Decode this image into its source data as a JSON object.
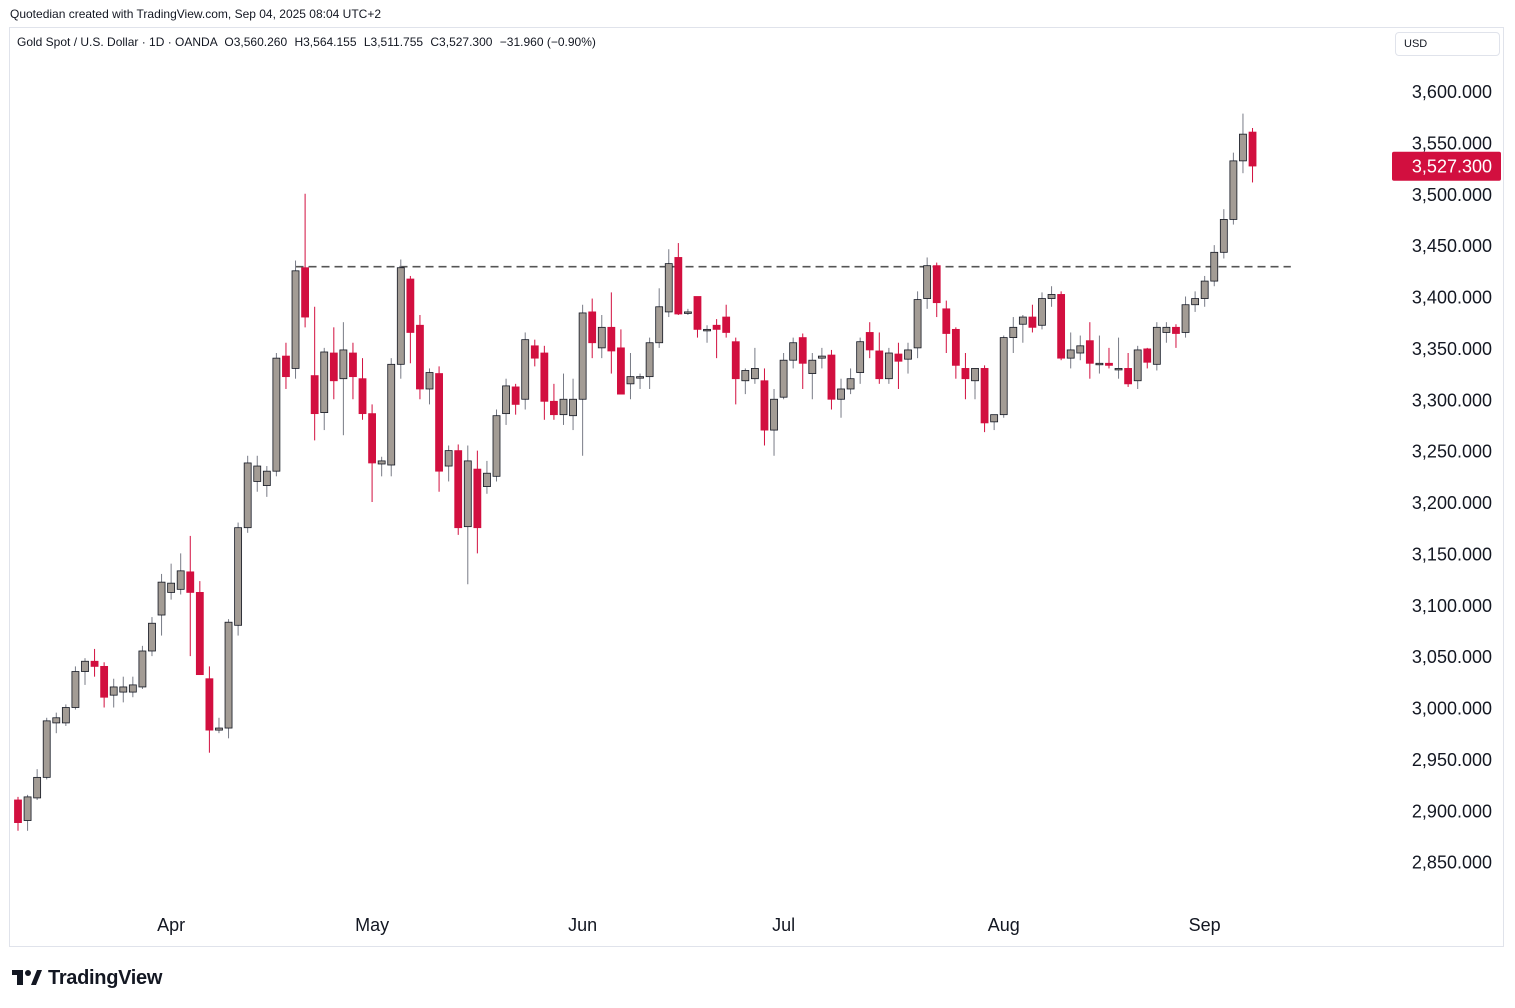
{
  "credit": "Quotedian created with TradingView.com, Sep 04, 2025 08:04 UTC+2",
  "legend": {
    "title": "Gold Spot / U.S. Dollar · 1D · OANDA",
    "open": "O3,560.260",
    "high": "H3,564.155",
    "low": "L3,511.755",
    "close": "C3,527.300",
    "change": "−31.960 (−0.90%)"
  },
  "currency": "USD",
  "last_price_label": "3,527.300",
  "brand": "TradingView",
  "colors": {
    "up": "#a39c95",
    "down": "#d20f3f",
    "wick_up": "#787b86",
    "wick_down": "#d20f3f",
    "price_tag": "#d20f3f",
    "line": "#555555"
  },
  "chart_data": {
    "type": "candlestick",
    "title": "Gold Spot / U.S. Dollar",
    "ylim": [
      2810,
      3625
    ],
    "y_ticks": [
      2850,
      2900,
      2950,
      3000,
      3050,
      3100,
      3150,
      3200,
      3250,
      3300,
      3350,
      3400,
      3450,
      3500,
      3550,
      3600
    ],
    "y_tick_labels": [
      "2,850.000",
      "2,900.000",
      "2,950.000",
      "3,000.000",
      "3,050.000",
      "3,100.000",
      "3,150.000",
      "3,200.000",
      "3,250.000",
      "3,300.000",
      "3,350.000",
      "3,400.000",
      "3,450.000",
      "3,500.000",
      "3,550.000",
      "3,600.000"
    ],
    "x_labels": [
      {
        "label": "Apr",
        "index": 16
      },
      {
        "label": "May",
        "index": 37
      },
      {
        "label": "Jun",
        "index": 59
      },
      {
        "label": "Jul",
        "index": 80
      },
      {
        "label": "Aug",
        "index": 103
      },
      {
        "label": "Sep",
        "index": 124
      }
    ],
    "horizontal_line": {
      "value": 3429,
      "from_index": 29,
      "to_index": 133,
      "style": "dashed"
    },
    "last_price": 3527.3,
    "candles": [
      {
        "o": 2910,
        "h": 2913,
        "l": 2880,
        "c": 2888
      },
      {
        "o": 2890,
        "h": 2915,
        "l": 2880,
        "c": 2913
      },
      {
        "o": 2912,
        "h": 2940,
        "l": 2910,
        "c": 2932
      },
      {
        "o": 2932,
        "h": 2990,
        "l": 2930,
        "c": 2987
      },
      {
        "o": 2985,
        "h": 2995,
        "l": 2975,
        "c": 2990
      },
      {
        "o": 2985,
        "h": 3003,
        "l": 2982,
        "c": 3000
      },
      {
        "o": 3000,
        "h": 3040,
        "l": 2998,
        "c": 3035
      },
      {
        "o": 3035,
        "h": 3048,
        "l": 3022,
        "c": 3045
      },
      {
        "o": 3045,
        "h": 3057,
        "l": 3030,
        "c": 3040
      },
      {
        "o": 3040,
        "h": 3044,
        "l": 3000,
        "c": 3010
      },
      {
        "o": 3012,
        "h": 3028,
        "l": 3000,
        "c": 3020
      },
      {
        "o": 3015,
        "h": 3030,
        "l": 3005,
        "c": 3020
      },
      {
        "o": 3015,
        "h": 3030,
        "l": 3010,
        "c": 3022
      },
      {
        "o": 3020,
        "h": 3060,
        "l": 3018,
        "c": 3055
      },
      {
        "o": 3055,
        "h": 3088,
        "l": 3050,
        "c": 3082
      },
      {
        "o": 3090,
        "h": 3130,
        "l": 3070,
        "c": 3122
      },
      {
        "o": 3112,
        "h": 3140,
        "l": 3105,
        "c": 3121
      },
      {
        "o": 3115,
        "h": 3150,
        "l": 3110,
        "c": 3133
      },
      {
        "o": 3132,
        "h": 3167,
        "l": 3050,
        "c": 3112
      },
      {
        "o": 3112,
        "h": 3123,
        "l": 3035,
        "c": 3032
      },
      {
        "o": 3028,
        "h": 3040,
        "l": 2956,
        "c": 2978
      },
      {
        "o": 2978,
        "h": 2990,
        "l": 2975,
        "c": 2980
      },
      {
        "o": 2980,
        "h": 3086,
        "l": 2970,
        "c": 3083
      },
      {
        "o": 3080,
        "h": 3180,
        "l": 3070,
        "c": 3175
      },
      {
        "o": 3175,
        "h": 3245,
        "l": 3170,
        "c": 3238
      },
      {
        "o": 3220,
        "h": 3245,
        "l": 3210,
        "c": 3235
      },
      {
        "o": 3216,
        "h": 3235,
        "l": 3205,
        "c": 3230
      },
      {
        "o": 3230,
        "h": 3345,
        "l": 3225,
        "c": 3340
      },
      {
        "o": 3342,
        "h": 3355,
        "l": 3310,
        "c": 3322
      },
      {
        "o": 3330,
        "h": 3435,
        "l": 3320,
        "c": 3425
      },
      {
        "o": 3428,
        "h": 3500,
        "l": 3370,
        "c": 3380
      },
      {
        "o": 3323,
        "h": 3390,
        "l": 3260,
        "c": 3286
      },
      {
        "o": 3287,
        "h": 3350,
        "l": 3270,
        "c": 3346
      },
      {
        "o": 3345,
        "h": 3370,
        "l": 3300,
        "c": 3318
      },
      {
        "o": 3320,
        "h": 3375,
        "l": 3265,
        "c": 3348
      },
      {
        "o": 3345,
        "h": 3355,
        "l": 3300,
        "c": 3322
      },
      {
        "o": 3320,
        "h": 3340,
        "l": 3280,
        "c": 3286
      },
      {
        "o": 3286,
        "h": 3295,
        "l": 3200,
        "c": 3238
      },
      {
        "o": 3237,
        "h": 3244,
        "l": 3225,
        "c": 3240
      },
      {
        "o": 3236,
        "h": 3340,
        "l": 3225,
        "c": 3334
      },
      {
        "o": 3334,
        "h": 3436,
        "l": 3320,
        "c": 3428
      },
      {
        "o": 3417,
        "h": 3420,
        "l": 3335,
        "c": 3365
      },
      {
        "o": 3372,
        "h": 3382,
        "l": 3300,
        "c": 3310
      },
      {
        "o": 3310,
        "h": 3330,
        "l": 3295,
        "c": 3326
      },
      {
        "o": 3325,
        "h": 3332,
        "l": 3210,
        "c": 3230
      },
      {
        "o": 3235,
        "h": 3255,
        "l": 3220,
        "c": 3250
      },
      {
        "o": 3250,
        "h": 3256,
        "l": 3168,
        "c": 3175
      },
      {
        "o": 3176,
        "h": 3255,
        "l": 3120,
        "c": 3240
      },
      {
        "o": 3232,
        "h": 3250,
        "l": 3150,
        "c": 3175
      },
      {
        "o": 3215,
        "h": 3240,
        "l": 3208,
        "c": 3228
      },
      {
        "o": 3225,
        "h": 3290,
        "l": 3220,
        "c": 3284
      },
      {
        "o": 3286,
        "h": 3320,
        "l": 3275,
        "c": 3313
      },
      {
        "o": 3312,
        "h": 3315,
        "l": 3285,
        "c": 3295
      },
      {
        "o": 3300,
        "h": 3365,
        "l": 3290,
        "c": 3358
      },
      {
        "o": 3352,
        "h": 3358,
        "l": 3332,
        "c": 3340
      },
      {
        "o": 3345,
        "h": 3352,
        "l": 3280,
        "c": 3298
      },
      {
        "o": 3298,
        "h": 3315,
        "l": 3280,
        "c": 3285
      },
      {
        "o": 3285,
        "h": 3325,
        "l": 3275,
        "c": 3300
      },
      {
        "o": 3284,
        "h": 3320,
        "l": 3270,
        "c": 3300
      },
      {
        "o": 3300,
        "h": 3392,
        "l": 3245,
        "c": 3384
      },
      {
        "o": 3385,
        "h": 3398,
        "l": 3340,
        "c": 3355
      },
      {
        "o": 3350,
        "h": 3382,
        "l": 3340,
        "c": 3370
      },
      {
        "o": 3370,
        "h": 3404,
        "l": 3325,
        "c": 3347
      },
      {
        "o": 3350,
        "h": 3368,
        "l": 3305,
        "c": 3305
      },
      {
        "o": 3315,
        "h": 3345,
        "l": 3300,
        "c": 3322
      },
      {
        "o": 3322,
        "h": 3325,
        "l": 3310,
        "c": 3322
      },
      {
        "o": 3322,
        "h": 3360,
        "l": 3310,
        "c": 3355
      },
      {
        "o": 3355,
        "h": 3408,
        "l": 3350,
        "c": 3390
      },
      {
        "o": 3385,
        "h": 3446,
        "l": 3380,
        "c": 3432
      },
      {
        "o": 3438,
        "h": 3452,
        "l": 3382,
        "c": 3383
      },
      {
        "o": 3385,
        "h": 3388,
        "l": 3382,
        "c": 3385
      },
      {
        "o": 3400,
        "h": 3400,
        "l": 3360,
        "c": 3368
      },
      {
        "o": 3368,
        "h": 3372,
        "l": 3355,
        "c": 3368
      },
      {
        "o": 3372,
        "h": 3378,
        "l": 3340,
        "c": 3368
      },
      {
        "o": 3380,
        "h": 3392,
        "l": 3360,
        "c": 3365
      },
      {
        "o": 3356,
        "h": 3360,
        "l": 3295,
        "c": 3320
      },
      {
        "o": 3318,
        "h": 3330,
        "l": 3305,
        "c": 3328
      },
      {
        "o": 3320,
        "h": 3350,
        "l": 3315,
        "c": 3330
      },
      {
        "o": 3318,
        "h": 3330,
        "l": 3255,
        "c": 3270
      },
      {
        "o": 3270,
        "h": 3310,
        "l": 3245,
        "c": 3300
      },
      {
        "o": 3302,
        "h": 3345,
        "l": 3300,
        "c": 3338
      },
      {
        "o": 3338,
        "h": 3360,
        "l": 3330,
        "c": 3355
      },
      {
        "o": 3360,
        "h": 3364,
        "l": 3310,
        "c": 3335
      },
      {
        "o": 3325,
        "h": 3345,
        "l": 3300,
        "c": 3338
      },
      {
        "o": 3340,
        "h": 3350,
        "l": 3330,
        "c": 3342
      },
      {
        "o": 3343,
        "h": 3348,
        "l": 3290,
        "c": 3300
      },
      {
        "o": 3300,
        "h": 3320,
        "l": 3282,
        "c": 3310
      },
      {
        "o": 3310,
        "h": 3330,
        "l": 3305,
        "c": 3320
      },
      {
        "o": 3326,
        "h": 3360,
        "l": 3315,
        "c": 3356
      },
      {
        "o": 3365,
        "h": 3375,
        "l": 3340,
        "c": 3348
      },
      {
        "o": 3347,
        "h": 3365,
        "l": 3315,
        "c": 3320
      },
      {
        "o": 3320,
        "h": 3350,
        "l": 3315,
        "c": 3345
      },
      {
        "o": 3344,
        "h": 3355,
        "l": 3310,
        "c": 3337
      },
      {
        "o": 3339,
        "h": 3355,
        "l": 3325,
        "c": 3348
      },
      {
        "o": 3350,
        "h": 3405,
        "l": 3340,
        "c": 3397
      },
      {
        "o": 3398,
        "h": 3438,
        "l": 3388,
        "c": 3430
      },
      {
        "o": 3430,
        "h": 3433,
        "l": 3380,
        "c": 3394
      },
      {
        "o": 3388,
        "h": 3396,
        "l": 3345,
        "c": 3364
      },
      {
        "o": 3368,
        "h": 3370,
        "l": 3320,
        "c": 3333
      },
      {
        "o": 3330,
        "h": 3345,
        "l": 3300,
        "c": 3320
      },
      {
        "o": 3318,
        "h": 3330,
        "l": 3300,
        "c": 3330
      },
      {
        "o": 3330,
        "h": 3333,
        "l": 3268,
        "c": 3277
      },
      {
        "o": 3278,
        "h": 3285,
        "l": 3270,
        "c": 3285
      },
      {
        "o": 3285,
        "h": 3362,
        "l": 3282,
        "c": 3360
      },
      {
        "o": 3360,
        "h": 3380,
        "l": 3345,
        "c": 3370
      },
      {
        "o": 3373,
        "h": 3382,
        "l": 3355,
        "c": 3380
      },
      {
        "o": 3380,
        "h": 3392,
        "l": 3365,
        "c": 3370
      },
      {
        "o": 3372,
        "h": 3404,
        "l": 3368,
        "c": 3398
      },
      {
        "o": 3398,
        "h": 3410,
        "l": 3390,
        "c": 3402
      },
      {
        "o": 3402,
        "h": 3405,
        "l": 3338,
        "c": 3340
      },
      {
        "o": 3340,
        "h": 3365,
        "l": 3330,
        "c": 3348
      },
      {
        "o": 3345,
        "h": 3362,
        "l": 3338,
        "c": 3352
      },
      {
        "o": 3357,
        "h": 3375,
        "l": 3320,
        "c": 3335
      },
      {
        "o": 3335,
        "h": 3362,
        "l": 3325,
        "c": 3335
      },
      {
        "o": 3335,
        "h": 3350,
        "l": 3330,
        "c": 3333
      },
      {
        "o": 3330,
        "h": 3360,
        "l": 3320,
        "c": 3330
      },
      {
        "o": 3330,
        "h": 3345,
        "l": 3312,
        "c": 3315
      },
      {
        "o": 3318,
        "h": 3352,
        "l": 3310,
        "c": 3348
      },
      {
        "o": 3349,
        "h": 3350,
        "l": 3330,
        "c": 3336
      },
      {
        "o": 3334,
        "h": 3375,
        "l": 3328,
        "c": 3370
      },
      {
        "o": 3365,
        "h": 3375,
        "l": 3355,
        "c": 3370
      },
      {
        "o": 3370,
        "h": 3373,
        "l": 3350,
        "c": 3364
      },
      {
        "o": 3365,
        "h": 3400,
        "l": 3360,
        "c": 3392
      },
      {
        "o": 3392,
        "h": 3405,
        "l": 3385,
        "c": 3398
      },
      {
        "o": 3398,
        "h": 3420,
        "l": 3390,
        "c": 3415
      },
      {
        "o": 3415,
        "h": 3450,
        "l": 3410,
        "c": 3443
      },
      {
        "o": 3443,
        "h": 3485,
        "l": 3437,
        "c": 3475
      },
      {
        "o": 3475,
        "h": 3540,
        "l": 3470,
        "c": 3532
      },
      {
        "o": 3532,
        "h": 3578,
        "l": 3520,
        "c": 3558
      },
      {
        "o": 3560,
        "h": 3564,
        "l": 3511,
        "c": 3527
      }
    ]
  }
}
